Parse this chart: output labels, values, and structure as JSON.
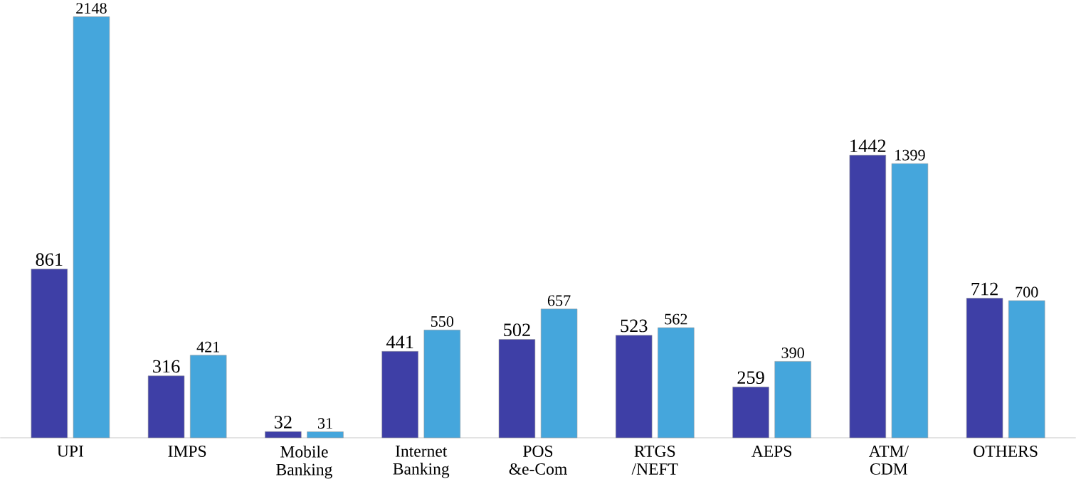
{
  "chart_data": {
    "type": "bar",
    "categories": [
      "UPI",
      "IMPS",
      "Mobile Banking",
      "Internet Banking",
      "POS &e-Com",
      "RTGS /NEFT",
      "AEPS",
      "ATM/ CDM",
      "OTHERS"
    ],
    "series": [
      {
        "color": "#3e3fa6",
        "values": [
          861,
          316,
          32,
          441,
          502,
          523,
          259,
          1442,
          712
        ]
      },
      {
        "color": "#45a6dc",
        "values": [
          2148,
          421,
          31,
          550,
          657,
          562,
          390,
          1399,
          700
        ]
      }
    ],
    "data_labels": true
  }
}
